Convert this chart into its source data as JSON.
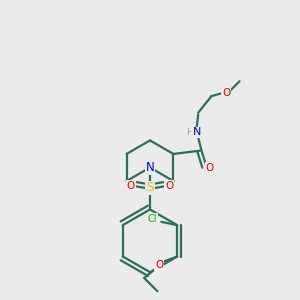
{
  "background_color": "#ebebeb",
  "atom_colors": {
    "C": "#2d6e5a",
    "N": "#0000ee",
    "O": "#ee0000",
    "S": "#cccc00",
    "Cl": "#00bb00",
    "H": "#7a9e9a"
  },
  "bond_color": "#2d6e5a",
  "line_width": 1.6,
  "font_size": 7.5
}
